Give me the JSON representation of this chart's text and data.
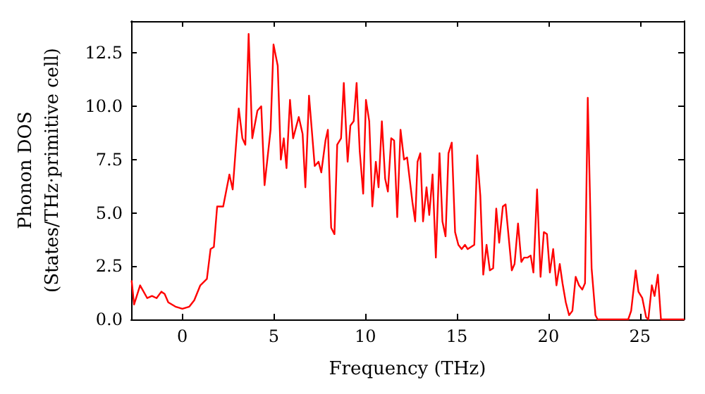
{
  "chart_data": {
    "type": "line",
    "xlabel": "Frequency (THz)",
    "ylabel": "Phonon DOS\n(States/THz·primitive cell)",
    "xlim": [
      -2.8,
      27.4
    ],
    "xticks": [
      0,
      5,
      10,
      15,
      20,
      25
    ],
    "ylim": [
      0,
      14
    ],
    "yticks": [
      {
        "value": 0,
        "label": "0.0"
      },
      {
        "value": 2.5,
        "label": "2.5"
      },
      {
        "value": 5,
        "label": "5.0"
      },
      {
        "value": 7.5,
        "label": "7.5"
      },
      {
        "value": 10,
        "label": "10.0"
      },
      {
        "value": 12.5,
        "label": "12.5"
      }
    ],
    "marker": "none",
    "line_style": "solid",
    "series": [
      {
        "color": "#ff0000",
        "x": [
          -2.77,
          -2.64,
          -2.31,
          -1.92,
          -1.66,
          -1.41,
          -1.15,
          -0.97,
          -0.77,
          -0.38,
          0,
          0.38,
          0.65,
          0.98,
          1.34,
          1.54,
          1.72,
          1.9,
          2.23,
          2.57,
          2.75,
          3.08,
          3.28,
          3.44,
          3.62,
          3.82,
          4.1,
          4.31,
          4.49,
          4.82,
          4.98,
          5.21,
          5.38,
          5.54,
          5.69,
          5.88,
          6.05,
          6.36,
          6.57,
          6.72,
          6.92,
          7.23,
          7.44,
          7.59,
          7.82,
          7.95,
          8.13,
          8.31,
          8.46,
          8.67,
          8.82,
          9.03,
          9.18,
          9.36,
          9.52,
          9.69,
          9.88,
          10.03,
          10.21,
          10.38,
          10.57,
          10.72,
          10.9,
          11.08,
          11.23,
          11.41,
          11.57,
          11.74,
          11.92,
          12.11,
          12.28,
          12.57,
          12.72,
          12.85,
          13.0,
          13.15,
          13.34,
          13.49,
          13.67,
          13.85,
          14.05,
          14.21,
          14.38,
          14.54,
          14.72,
          14.9,
          15.08,
          15.26,
          15.44,
          15.59,
          15.77,
          15.95,
          16.11,
          16.28,
          16.44,
          16.62,
          16.8,
          16.98,
          17.15,
          17.31,
          17.51,
          17.66,
          18.0,
          18.15,
          18.34,
          18.52,
          18.67,
          18.85,
          19.03,
          19.18,
          19.38,
          19.57,
          19.75,
          19.92,
          20.08,
          20.26,
          20.44,
          20.62,
          20.77,
          20.95,
          21.13,
          21.31,
          21.49,
          21.67,
          21.85,
          22.0,
          22.15,
          22.36,
          22.57,
          22.69,
          24.36,
          24.52,
          24.77,
          24.92,
          25.13,
          25.34,
          25.46,
          25.65,
          25.8,
          25.98,
          26.15,
          27.4
        ],
        "values": [
          1.8,
          0.7,
          1.6,
          1.0,
          1.1,
          1.0,
          1.3,
          1.2,
          0.8,
          0.6,
          0.5,
          0.6,
          0.9,
          1.6,
          1.9,
          3.3,
          3.4,
          5.3,
          5.3,
          6.8,
          6.1,
          9.9,
          8.5,
          8.2,
          13.4,
          8.5,
          9.8,
          10.0,
          6.3,
          8.9,
          12.9,
          11.9,
          7.5,
          8.5,
          7.1,
          10.3,
          8.5,
          9.5,
          8.7,
          6.2,
          10.5,
          7.2,
          7.4,
          6.9,
          8.4,
          8.9,
          4.3,
          4.0,
          8.2,
          8.5,
          11.1,
          7.4,
          9.1,
          9.3,
          11.1,
          7.9,
          5.9,
          10.3,
          9.3,
          5.3,
          7.4,
          6.2,
          9.3,
          6.6,
          6.0,
          8.5,
          8.4,
          4.8,
          8.9,
          7.5,
          7.6,
          5.5,
          4.6,
          7.4,
          7.8,
          4.6,
          6.2,
          4.9,
          6.8,
          2.9,
          7.8,
          4.6,
          3.9,
          7.8,
          8.3,
          4.1,
          3.5,
          3.3,
          3.5,
          3.3,
          3.4,
          3.5,
          7.7,
          5.8,
          2.1,
          3.5,
          2.3,
          2.4,
          5.2,
          3.6,
          5.3,
          5.4,
          2.3,
          2.6,
          4.5,
          2.7,
          2.9,
          2.9,
          3.0,
          2.2,
          6.1,
          2.0,
          4.1,
          4.0,
          2.2,
          3.3,
          1.6,
          2.6,
          1.7,
          0.8,
          0.2,
          0.4,
          2.0,
          1.6,
          1.4,
          1.7,
          10.4,
          2.4,
          0.2,
          0,
          0,
          0.4,
          2.3,
          1.3,
          1.0,
          0.1,
          0,
          1.6,
          1.1,
          2.1,
          0,
          0
        ]
      }
    ]
  }
}
